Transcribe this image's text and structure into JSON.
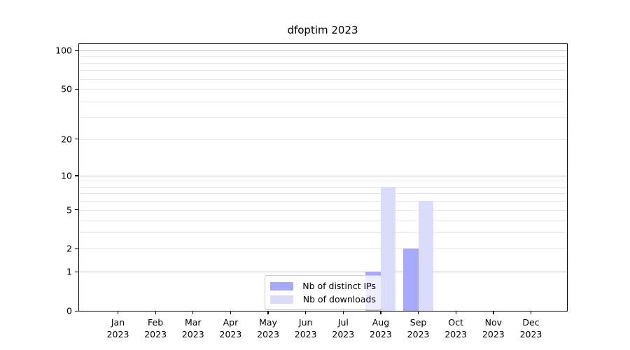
{
  "chart_data": {
    "type": "bar",
    "title": "dfoptim 2023",
    "x_categories": [
      "Jan",
      "Feb",
      "Mar",
      "Apr",
      "May",
      "Jun",
      "Jul",
      "Aug",
      "Sep",
      "Oct",
      "Nov",
      "Dec"
    ],
    "x_year": "2023",
    "series": [
      {
        "name": "Nb of distinct IPs",
        "color": "#a8a8f9",
        "values": [
          0,
          0,
          0,
          0,
          0,
          0,
          0,
          1,
          2,
          0,
          0,
          0
        ]
      },
      {
        "name": "Nb of downloads",
        "color": "#dbdbfa",
        "values": [
          0,
          0,
          0,
          0,
          0,
          0,
          0,
          8,
          6,
          0,
          0,
          0
        ]
      }
    ],
    "y_scale": "log1p",
    "y_ticks": [
      0,
      1,
      2,
      5,
      10,
      20,
      50,
      100
    ],
    "y_minor_gridlines": [
      3,
      4,
      6,
      7,
      8,
      9,
      30,
      40,
      60,
      70,
      80,
      90
    ],
    "ylim": [
      0,
      112
    ],
    "grid": "horizontal",
    "legend_position": "bottom-center",
    "colors": {
      "major_grid": "#c8c8c8",
      "minor_grid": "#e9e9e9",
      "axis": "#000000",
      "background": "#ffffff"
    }
  }
}
